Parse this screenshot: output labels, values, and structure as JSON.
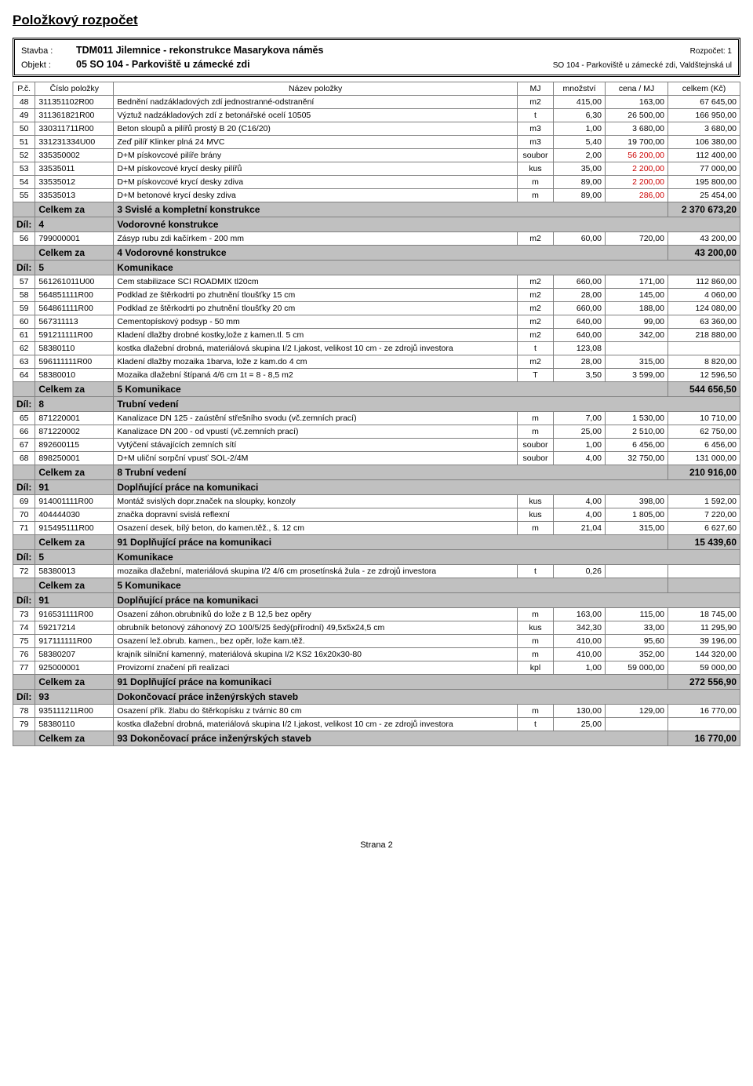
{
  "title": "Položkový rozpočet",
  "header": {
    "label_stavba": "Stavba :",
    "label_objekt": "Objekt :",
    "stavba_val": "TDM011 Jilemnice - rekonstrukce Masarykova náměs",
    "objekt_val": "05 SO 104 - Parkoviště u zámecké zdi",
    "rozpocet": "Rozpočet: 1",
    "objekt_right": "SO 104 - Parkoviště u zámecké zdi, Valdštejnská ul"
  },
  "cols": {
    "pc": "P.č.",
    "code": "Číslo položky",
    "name": "Název položky",
    "mj": "MJ",
    "qty": "množství",
    "price": "cena / MJ",
    "total": "celkem (Kč)"
  },
  "labels": {
    "dil": "Díl:",
    "celkem_za": "Celkem za"
  },
  "rows": [
    {
      "t": "item",
      "pc": "48",
      "code": "311351102R00",
      "name": "Bednění nadzákladových zdí jednostranné-odstranění",
      "mj": "m2",
      "qty": "415,00",
      "price": "163,00",
      "total": "67 645,00"
    },
    {
      "t": "item",
      "pc": "49",
      "code": "311361821R00",
      "name": "Výztuž nadzákladových zdí z betonářské ocelí 10505",
      "mj": "t",
      "qty": "6,30",
      "price": "26 500,00",
      "total": "166 950,00"
    },
    {
      "t": "item",
      "pc": "50",
      "code": "330311711R00",
      "name": "Beton sloupů a pilířů prostý B 20 (C16/20)",
      "mj": "m3",
      "qty": "1,00",
      "price": "3 680,00",
      "total": "3 680,00"
    },
    {
      "t": "item",
      "pc": "51",
      "code": "331231334U00",
      "name": "Zeď pilíř Klinker plná 24 MVC",
      "mj": "m3",
      "qty": "5,40",
      "price": "19 700,00",
      "total": "106 380,00"
    },
    {
      "t": "item",
      "pc": "52",
      "code": "335350002",
      "name": "D+M pískovcové pilíře brány",
      "mj": "soubor",
      "qty": "2,00",
      "price": "56 200,00",
      "price_red": true,
      "total": "112 400,00"
    },
    {
      "t": "item",
      "pc": "53",
      "code": "33535011",
      "name": "D+M pískovcové krycí desky pilířů",
      "mj": "kus",
      "qty": "35,00",
      "price": "2 200,00",
      "price_red": true,
      "total": "77 000,00"
    },
    {
      "t": "item",
      "pc": "54",
      "code": "33535012",
      "name": "D+M pískovcové krycí desky zdiva",
      "mj": "m",
      "qty": "89,00",
      "price": "2 200,00",
      "price_red": true,
      "total": "195 800,00"
    },
    {
      "t": "item",
      "pc": "55",
      "code": "33535013",
      "name": "D+M betonové krycí desky zdiva",
      "mj": "m",
      "qty": "89,00",
      "price": "286,00",
      "price_red": true,
      "total": "25 454,00"
    },
    {
      "t": "total",
      "label": "3 Svislé a kompletní konstrukce",
      "amount": "2 370 673,20"
    },
    {
      "t": "section",
      "num": "4",
      "name": "Vodorovné konstrukce"
    },
    {
      "t": "item",
      "pc": "56",
      "code": "799000001",
      "name": "Zásyp rubu zdi kačírkem - 200 mm",
      "mj": "m2",
      "qty": "60,00",
      "price": "720,00",
      "total": "43 200,00"
    },
    {
      "t": "total",
      "label": "4 Vodorovné konstrukce",
      "amount": "43 200,00"
    },
    {
      "t": "section",
      "num": "5",
      "name": "Komunikace"
    },
    {
      "t": "item",
      "pc": "57",
      "code": "561261011U00",
      "name": "Cem stabilizace SCI ROADMIX tl20cm",
      "mj": "m2",
      "qty": "660,00",
      "price": "171,00",
      "total": "112 860,00"
    },
    {
      "t": "item",
      "pc": "58",
      "code": "564851111R00",
      "name": "Podklad ze štěrkodrti po zhutnění tloušťky 15 cm",
      "mj": "m2",
      "qty": "28,00",
      "price": "145,00",
      "total": "4 060,00"
    },
    {
      "t": "item",
      "pc": "59",
      "code": "564861111R00",
      "name": "Podklad ze štěrkodrti po zhutnění tloušťky 20 cm",
      "mj": "m2",
      "qty": "660,00",
      "price": "188,00",
      "total": "124 080,00"
    },
    {
      "t": "item",
      "pc": "60",
      "code": "567311113",
      "name": "Cementopískový podsyp - 50 mm",
      "mj": "m2",
      "qty": "640,00",
      "price": "99,00",
      "total": "63 360,00"
    },
    {
      "t": "item",
      "pc": "61",
      "code": "591211111R00",
      "name": "Kladení dlažby drobné kostky,lože z kamen.tl. 5 cm",
      "mj": "m2",
      "qty": "640,00",
      "price": "342,00",
      "total": "218 880,00"
    },
    {
      "t": "item",
      "pc": "62",
      "code": "58380110",
      "name": "kostka dlažební drobná, materiálová skupina I/2 I.jakost, velikost 10 cm - ze zdrojů investora",
      "mj": "t",
      "qty": "123,08",
      "price": "",
      "total": ""
    },
    {
      "t": "item",
      "pc": "63",
      "code": "596111111R00",
      "name": "Kladení dlažby mozaika 1barva, lože z kam.do 4 cm",
      "mj": "m2",
      "qty": "28,00",
      "price": "315,00",
      "total": "8 820,00"
    },
    {
      "t": "item",
      "pc": "64",
      "code": "58380010",
      "name": "Mozaika dlažební štípaná 4/6 cm  1t = 8 - 8,5 m2",
      "mj": "T",
      "qty": "3,50",
      "price": "3 599,00",
      "total": "12 596,50"
    },
    {
      "t": "total",
      "label": "5 Komunikace",
      "amount": "544 656,50"
    },
    {
      "t": "section",
      "num": "8",
      "name": "Trubní vedení"
    },
    {
      "t": "item",
      "pc": "65",
      "code": "871220001",
      "name": "Kanalizace DN 125 - zaústění střešního svodu (vč.zemních prací)",
      "mj": "m",
      "qty": "7,00",
      "price": "1 530,00",
      "total": "10 710,00"
    },
    {
      "t": "item",
      "pc": "66",
      "code": "871220002",
      "name": "Kanalizace DN 200 - od vpustí (vč.zemních prací)",
      "mj": "m",
      "qty": "25,00",
      "price": "2 510,00",
      "total": "62 750,00"
    },
    {
      "t": "item",
      "pc": "67",
      "code": "892600115",
      "name": "Vytýčení stávajících zemních sítí",
      "mj": "soubor",
      "qty": "1,00",
      "price": "6 456,00",
      "total": "6 456,00"
    },
    {
      "t": "item",
      "pc": "68",
      "code": "898250001",
      "name": "D+M uliční sorpční vpusť SOL-2/4M",
      "mj": "soubor",
      "qty": "4,00",
      "price": "32 750,00",
      "total": "131 000,00"
    },
    {
      "t": "total",
      "label": "8 Trubní vedení",
      "amount": "210 916,00"
    },
    {
      "t": "section",
      "num": "91",
      "name": "Doplňující práce na komunikaci"
    },
    {
      "t": "item",
      "pc": "69",
      "code": "914001111R00",
      "name": "Montáž svislých dopr.značek na sloupky, konzoly",
      "mj": "kus",
      "qty": "4,00",
      "price": "398,00",
      "total": "1 592,00"
    },
    {
      "t": "item",
      "pc": "70",
      "code": "404444030",
      "name": "značka dopravní svislá reflexní",
      "mj": "kus",
      "qty": "4,00",
      "price": "1 805,00",
      "total": "7 220,00"
    },
    {
      "t": "item",
      "pc": "71",
      "code": "915495111R00",
      "name": "Osazení desek, bílý beton, do kamen.těž., š. 12 cm",
      "mj": "m",
      "qty": "21,04",
      "price": "315,00",
      "total": "6 627,60"
    },
    {
      "t": "total",
      "label": "91 Doplňující práce na komunikaci",
      "amount": "15 439,60"
    },
    {
      "t": "section",
      "num": "5",
      "name": "Komunikace"
    },
    {
      "t": "item",
      "pc": "72",
      "code": "58380013",
      "name": "mozaika dlažební, materiálová skupina I/2 4/6 cm prosetínská žula - ze zdrojů investora",
      "mj": "t",
      "qty": "0,26",
      "price": "",
      "total": ""
    },
    {
      "t": "total",
      "label": "5 Komunikace",
      "amount": ""
    },
    {
      "t": "section",
      "num": "91",
      "name": "Doplňující práce na komunikaci"
    },
    {
      "t": "item",
      "pc": "73",
      "code": "916531111R00",
      "name": "Osazení záhon.obrubníků do lože z B 12,5 bez opěry",
      "mj": "m",
      "qty": "163,00",
      "price": "115,00",
      "total": "18 745,00"
    },
    {
      "t": "item",
      "pc": "74",
      "code": "59217214",
      "name": "obrubník betonový záhonový ZO 100/5/25 šedý(přírodní) 49,5x5x24,5 cm",
      "mj": "kus",
      "qty": "342,30",
      "price": "33,00",
      "total": "11 295,90"
    },
    {
      "t": "item",
      "pc": "75",
      "code": "917111111R00",
      "name": "Osazení lež.obrub. kamen., bez opěr, lože kam.těž.",
      "mj": "m",
      "qty": "410,00",
      "price": "95,60",
      "total": "39 196,00"
    },
    {
      "t": "item",
      "pc": "76",
      "code": "58380207",
      "name": "krajník silniční kamenný, materiálová skupina I/2 KS2 16x20x30-80",
      "mj": "m",
      "qty": "410,00",
      "price": "352,00",
      "total": "144 320,00"
    },
    {
      "t": "item",
      "pc": "77",
      "code": "925000001",
      "name": "Provizorní značení při realizaci",
      "mj": "kpl",
      "qty": "1,00",
      "price": "59 000,00",
      "total": "59 000,00"
    },
    {
      "t": "total",
      "label": "91 Doplňující práce na komunikaci",
      "amount": "272 556,90"
    },
    {
      "t": "section",
      "num": "93",
      "name": "Dokončovací práce inženýrských staveb"
    },
    {
      "t": "item",
      "pc": "78",
      "code": "935111211R00",
      "name": "Osazení přík. žlabu do štěrkopísku z tvárnic 80 cm",
      "mj": "m",
      "qty": "130,00",
      "price": "129,00",
      "total": "16 770,00"
    },
    {
      "t": "item",
      "pc": "79",
      "code": "58380110",
      "name": "kostka dlažební drobná, materiálová skupina I/2 I.jakost, velikost 10 cm - ze zdrojů investora",
      "mj": "t",
      "qty": "25,00",
      "price": "",
      "total": ""
    },
    {
      "t": "total",
      "label": "93 Dokončovací práce inženýrských staveb",
      "amount": "16 770,00"
    }
  ],
  "footer": "Strana 2"
}
